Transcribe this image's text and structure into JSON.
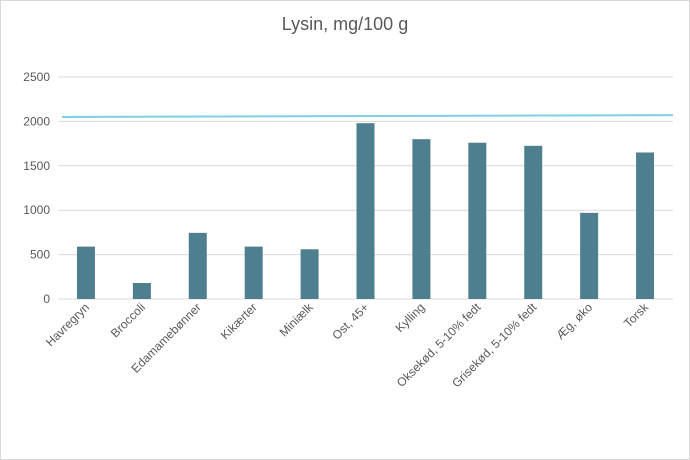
{
  "chart_data": {
    "type": "bar",
    "title": "Lysin, mg/100 g",
    "xlabel": "",
    "ylabel": "",
    "categories": [
      "Havregryn",
      "Broccoli",
      "Edamamebønner",
      "Kikærter",
      "Miniælk",
      "Ost, 45+",
      "Kylling",
      "Oksekød, 5-10% fedt",
      "Grisekød, 5-10% fedt",
      "Æg, øko",
      "Torsk"
    ],
    "values": [
      590,
      180,
      745,
      590,
      560,
      1980,
      1800,
      1760,
      1725,
      970,
      1650
    ],
    "ylim": [
      0,
      2500
    ],
    "yticks": [
      0,
      500,
      1000,
      1500,
      2000,
      2500
    ],
    "reference_line": {
      "y_start": 2050,
      "y_end": 2070
    },
    "grid": true,
    "legend": "none",
    "colors": {
      "bar": "#4e7f8e",
      "reference_line": "#7ecfe6",
      "grid": "#d9d9d9",
      "text": "#595959"
    }
  }
}
